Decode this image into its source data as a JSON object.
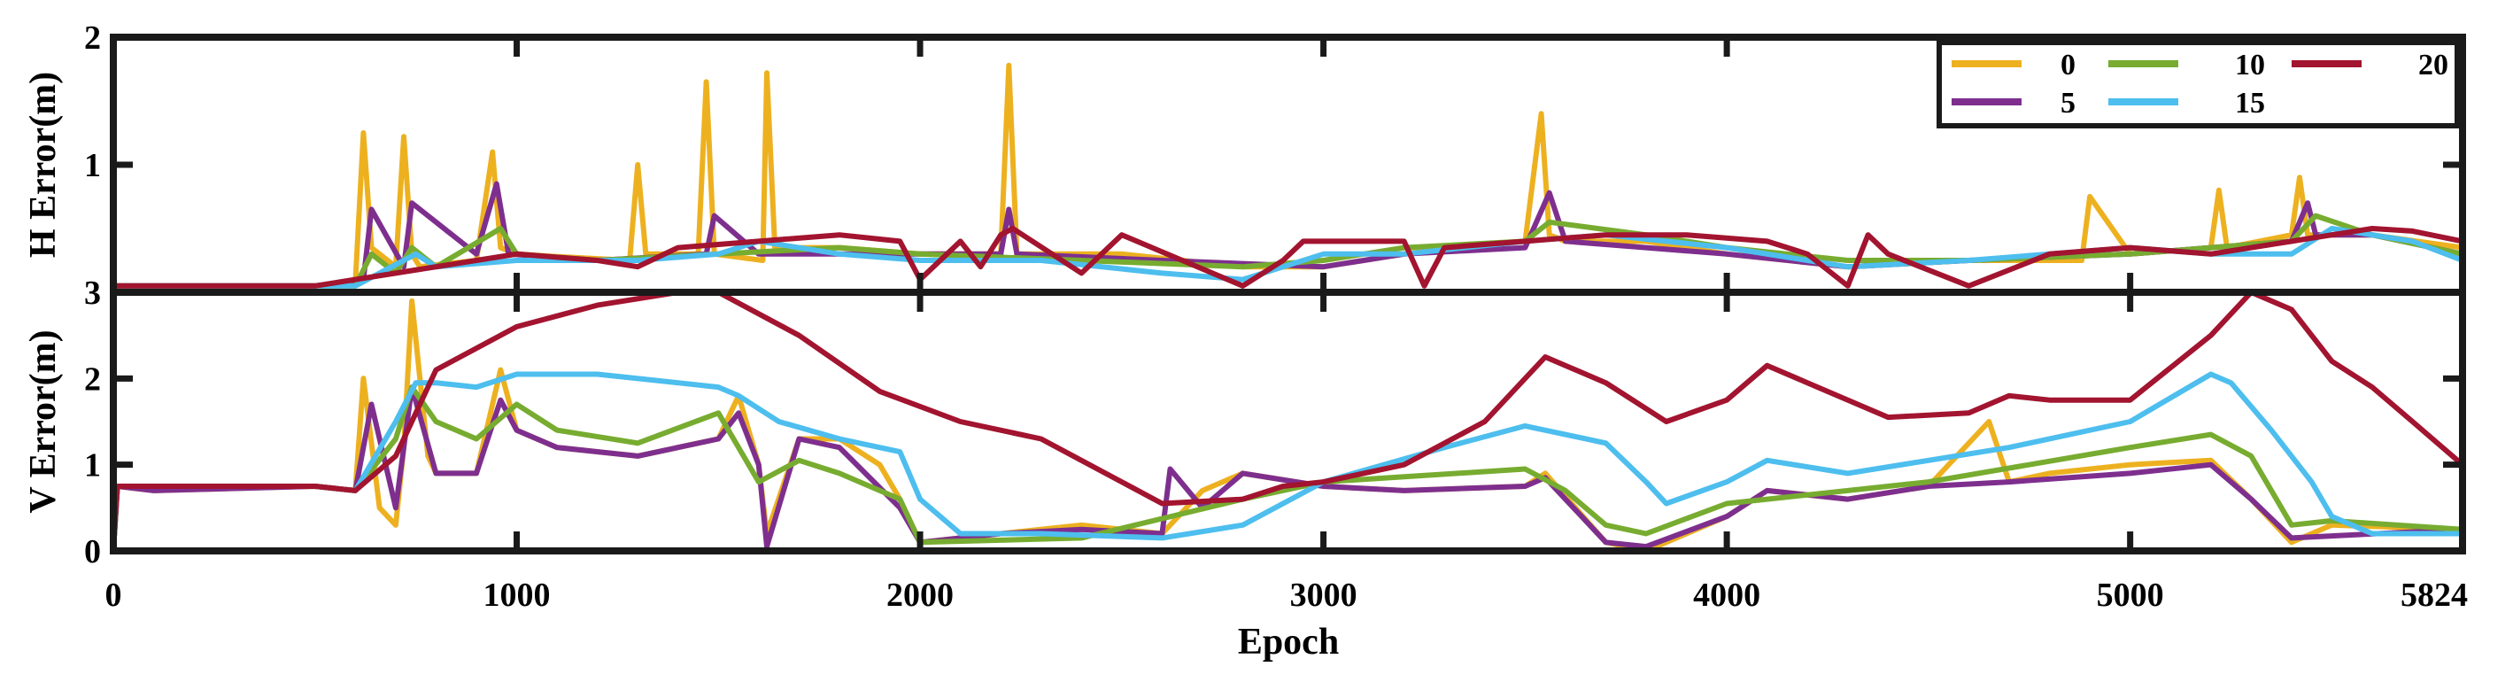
{
  "chart_data": {
    "type": "line",
    "xlabel": "Epoch",
    "xlim": [
      0,
      5824
    ],
    "xticks": [
      0,
      1000,
      2000,
      3000,
      4000,
      5000,
      5824
    ],
    "legend": {
      "placement": "top-right",
      "entries": [
        "0",
        "10",
        "20",
        "5",
        "15"
      ]
    },
    "series_colors": {
      "0": "#EDB120",
      "5": "#7E2F8E",
      "10": "#77AC30",
      "15": "#4DBEEE",
      "20": "#A2142F"
    },
    "panels": [
      {
        "ylabel": "H Error(m)",
        "ylim": [
          0,
          2
        ],
        "yticks": [
          1,
          2
        ],
        "series": [
          {
            "name": "0",
            "x": [
              0,
              500,
              600,
              620,
              640,
              700,
              720,
              740,
              760,
              900,
              940,
              960,
              1000,
              1100,
              1280,
              1300,
              1320,
              1450,
              1470,
              1490,
              1610,
              1620,
              1640,
              1800,
              2000,
              2200,
              2220,
              2240,
              2500,
              2800,
              3000,
              3200,
              3300,
              3500,
              3540,
              3560,
              3600,
              3800,
              4000,
              4300,
              4600,
              4880,
              4900,
              5000,
              5200,
              5220,
              5240,
              5400,
              5420,
              5440,
              5600,
              5824
            ],
            "y": [
              0.05,
              0.05,
              0.08,
              1.25,
              0.35,
              0.2,
              1.22,
              0.3,
              0.2,
              0.25,
              1.1,
              0.35,
              0.3,
              0.28,
              0.25,
              1.0,
              0.3,
              0.3,
              1.65,
              0.3,
              0.25,
              1.72,
              0.35,
              0.35,
              0.3,
              0.3,
              1.78,
              0.3,
              0.3,
              0.2,
              0.2,
              0.3,
              0.35,
              0.4,
              1.4,
              0.45,
              0.4,
              0.4,
              0.3,
              0.2,
              0.25,
              0.25,
              0.75,
              0.3,
              0.35,
              0.8,
              0.35,
              0.45,
              0.9,
              0.45,
              0.45,
              0.35
            ]
          },
          {
            "name": "5",
            "x": [
              0,
              500,
              620,
              640,
              720,
              740,
              900,
              950,
              980,
              1200,
              1470,
              1490,
              1600,
              2000,
              2200,
              2220,
              2240,
              2600,
              3000,
              3200,
              3500,
              3560,
              3600,
              3800,
              4000,
              4300,
              4600,
              5000,
              5200,
              5400,
              5440,
              5460,
              5600,
              5824
            ],
            "y": [
              0.05,
              0.05,
              0.1,
              0.65,
              0.2,
              0.7,
              0.3,
              0.85,
              0.3,
              0.25,
              0.3,
              0.6,
              0.3,
              0.3,
              0.3,
              0.65,
              0.3,
              0.25,
              0.2,
              0.3,
              0.35,
              0.78,
              0.4,
              0.35,
              0.3,
              0.2,
              0.25,
              0.3,
              0.35,
              0.4,
              0.7,
              0.45,
              0.45,
              0.3
            ]
          },
          {
            "name": "10",
            "x": [
              0,
              600,
              640,
              700,
              740,
              800,
              960,
              1000,
              1200,
              1500,
              1800,
              2000,
              2400,
              2800,
              3000,
              3200,
              3500,
              3560,
              3800,
              4000,
              4300,
              4600,
              5000,
              5200,
              5400,
              5460,
              5600,
              5824
            ],
            "y": [
              0.05,
              0.05,
              0.3,
              0.15,
              0.35,
              0.2,
              0.5,
              0.3,
              0.25,
              0.3,
              0.35,
              0.3,
              0.25,
              0.2,
              0.25,
              0.35,
              0.4,
              0.55,
              0.45,
              0.35,
              0.25,
              0.25,
              0.3,
              0.35,
              0.4,
              0.6,
              0.45,
              0.3
            ]
          },
          {
            "name": "15",
            "x": [
              0,
              600,
              750,
              800,
              1000,
              1300,
              1500,
              1600,
              1800,
              2000,
              2300,
              2600,
              2800,
              3000,
              3200,
              3500,
              3700,
              4000,
              4300,
              4600,
              5000,
              5200,
              5400,
              5500,
              5700,
              5824
            ],
            "y": [
              0.05,
              0.05,
              0.3,
              0.2,
              0.25,
              0.25,
              0.3,
              0.4,
              0.3,
              0.25,
              0.25,
              0.15,
              0.1,
              0.3,
              0.3,
              0.4,
              0.45,
              0.35,
              0.2,
              0.25,
              0.35,
              0.3,
              0.3,
              0.5,
              0.4,
              0.25
            ]
          },
          {
            "name": "20",
            "x": [
              0,
              500,
              700,
              900,
              1000,
              1200,
              1300,
              1400,
              1600,
              1800,
              1950,
              2000,
              2100,
              2150,
              2200,
              2230,
              2400,
              2500,
              2800,
              2900,
              2950,
              3000,
              3100,
              3200,
              3250,
              3300,
              3500,
              3700,
              3900,
              4100,
              4200,
              4300,
              4350,
              4400,
              4600,
              4800,
              5000,
              5200,
              5400,
              5600,
              5700,
              5824
            ],
            "y": [
              0.05,
              0.05,
              0.15,
              0.25,
              0.3,
              0.25,
              0.2,
              0.35,
              0.4,
              0.45,
              0.4,
              0.1,
              0.4,
              0.2,
              0.45,
              0.5,
              0.15,
              0.45,
              0.05,
              0.25,
              0.4,
              0.4,
              0.4,
              0.4,
              0.05,
              0.35,
              0.4,
              0.45,
              0.45,
              0.4,
              0.3,
              0.05,
              0.45,
              0.3,
              0.05,
              0.3,
              0.35,
              0.3,
              0.4,
              0.5,
              0.48,
              0.4
            ]
          }
        ]
      },
      {
        "ylabel": "V Error(m)",
        "ylim": [
          0,
          3
        ],
        "yticks": [
          0,
          1,
          2,
          3
        ],
        "series": [
          {
            "name": "0",
            "x": [
              0,
              10,
              100,
              500,
              600,
              620,
              660,
              700,
              720,
              740,
              780,
              800,
              900,
              960,
              1000,
              1100,
              1300,
              1500,
              1550,
              1600,
              1620,
              1700,
              1800,
              1900,
              1950,
              2000,
              2200,
              2400,
              2600,
              2700,
              2800,
              3000,
              3200,
              3500,
              3550,
              3700,
              3800,
              3900,
              4000,
              4100,
              4300,
              4500,
              4650,
              4700,
              4800,
              5000,
              5200,
              5300,
              5400,
              5500,
              5824
            ],
            "y": [
              0,
              0.75,
              0.7,
              0.75,
              0.7,
              2.0,
              0.5,
              0.3,
              1.2,
              2.9,
              1.1,
              0.9,
              0.9,
              2.1,
              1.4,
              1.2,
              1.1,
              1.3,
              1.8,
              1.0,
              0.2,
              1.3,
              1.3,
              1.0,
              0.6,
              0.1,
              0.2,
              0.3,
              0.2,
              0.7,
              0.9,
              0.75,
              0.7,
              0.75,
              0.9,
              0.1,
              0.0,
              0.2,
              0.4,
              0.7,
              0.6,
              0.75,
              1.5,
              0.8,
              0.9,
              1.0,
              1.05,
              0.6,
              0.1,
              0.3,
              0.25
            ]
          },
          {
            "name": "5",
            "x": [
              0,
              10,
              100,
              500,
              600,
              640,
              700,
              740,
              800,
              900,
              960,
              1000,
              1100,
              1300,
              1500,
              1550,
              1600,
              1620,
              1700,
              1800,
              1950,
              2000,
              2200,
              2400,
              2600,
              2620,
              2700,
              2800,
              3000,
              3200,
              3500,
              3550,
              3700,
              3800,
              4000,
              4100,
              4300,
              4500,
              4700,
              5000,
              5200,
              5300,
              5400,
              5824
            ],
            "y": [
              0,
              0.75,
              0.7,
              0.75,
              0.7,
              1.7,
              0.5,
              1.9,
              0.9,
              0.9,
              1.75,
              1.4,
              1.2,
              1.1,
              1.3,
              1.6,
              1.0,
              0.05,
              1.3,
              1.2,
              0.5,
              0.1,
              0.2,
              0.25,
              0.2,
              0.95,
              0.5,
              0.9,
              0.75,
              0.7,
              0.75,
              0.85,
              0.1,
              0.05,
              0.4,
              0.7,
              0.6,
              0.75,
              0.8,
              0.9,
              1.0,
              0.6,
              0.15,
              0.25
            ]
          },
          {
            "name": "10",
            "x": [
              0,
              10,
              500,
              600,
              700,
              740,
              800,
              900,
              1000,
              1100,
              1300,
              1500,
              1600,
              1700,
              1800,
              1950,
              2000,
              2400,
              2800,
              3000,
              3500,
              3600,
              3700,
              3800,
              4000,
              4500,
              5000,
              5200,
              5300,
              5400,
              5500,
              5824
            ],
            "y": [
              0,
              0.75,
              0.75,
              0.7,
              1.3,
              1.9,
              1.5,
              1.3,
              1.7,
              1.4,
              1.25,
              1.6,
              0.8,
              1.05,
              0.9,
              0.6,
              0.1,
              0.15,
              0.6,
              0.8,
              0.95,
              0.7,
              0.3,
              0.2,
              0.55,
              0.8,
              1.2,
              1.35,
              1.1,
              0.3,
              0.35,
              0.25
            ]
          },
          {
            "name": "15",
            "x": [
              0,
              10,
              500,
              600,
              700,
              750,
              800,
              900,
              1000,
              1200,
              1400,
              1500,
              1550,
              1650,
              1800,
              1950,
              2000,
              2100,
              2300,
              2600,
              2800,
              3000,
              3300,
              3500,
              3700,
              3800,
              3850,
              4000,
              4100,
              4300,
              4500,
              4700,
              5000,
              5200,
              5250,
              5350,
              5450,
              5500,
              5600,
              5824
            ],
            "y": [
              0,
              0.75,
              0.75,
              0.7,
              1.5,
              1.95,
              1.95,
              1.9,
              2.05,
              2.05,
              1.95,
              1.9,
              1.8,
              1.5,
              1.3,
              1.15,
              0.6,
              0.2,
              0.2,
              0.15,
              0.3,
              0.8,
              1.2,
              1.45,
              1.25,
              0.8,
              0.55,
              0.8,
              1.05,
              0.9,
              1.05,
              1.2,
              1.5,
              2.05,
              1.95,
              1.4,
              0.8,
              0.4,
              0.2,
              0.2
            ]
          },
          {
            "name": "20",
            "x": [
              0,
              10,
              500,
              600,
              700,
              800,
              1000,
              1200,
              1400,
              1500,
              1700,
              1900,
              2100,
              2300,
              2500,
              2600,
              2800,
              2900,
              3000,
              3200,
              3400,
              3550,
              3700,
              3850,
              4000,
              4100,
              4200,
              4400,
              4600,
              4700,
              4800,
              5000,
              5200,
              5300,
              5400,
              5500,
              5600,
              5700,
              5824
            ],
            "y": [
              0,
              0.75,
              0.75,
              0.7,
              1.1,
              2.1,
              2.6,
              2.85,
              3.0,
              3.0,
              2.5,
              1.85,
              1.5,
              1.3,
              0.8,
              0.55,
              0.6,
              0.75,
              0.8,
              1.0,
              1.5,
              2.25,
              1.95,
              1.5,
              1.75,
              2.15,
              1.95,
              1.55,
              1.6,
              1.8,
              1.75,
              1.75,
              2.5,
              3.0,
              2.8,
              2.2,
              1.9,
              1.5,
              1.0
            ]
          }
        ]
      }
    ]
  }
}
